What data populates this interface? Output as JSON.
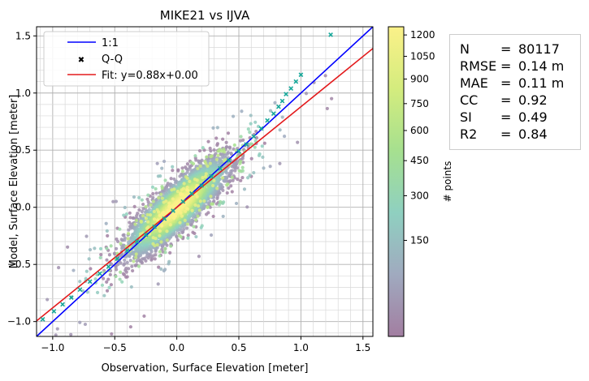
{
  "chart_data": {
    "type": "scatter",
    "title": "MIKE21 vs IJVA",
    "xlabel": "Observation, Surface Elevation [meter]",
    "ylabel": "Model, Surface Elevation [meter]",
    "xlim": [
      -1.13,
      1.58
    ],
    "ylim": [
      -1.13,
      1.58
    ],
    "xticks": [
      -1.0,
      -0.5,
      0.0,
      0.5,
      1.0,
      1.5
    ],
    "xtick_labels": [
      "−1.0",
      "−0.5",
      "0.0",
      "0.5",
      "1.0",
      "1.5"
    ],
    "yticks": [
      -1.0,
      -0.5,
      0.0,
      0.5,
      1.0,
      1.5
    ],
    "ytick_labels": [
      "−1.0",
      "−0.5",
      "0.0",
      "0.5",
      "1.0",
      "1.5"
    ],
    "grid": true,
    "legend_position": "top-left",
    "legend": [
      {
        "label": "1:1",
        "color": "#0000ff",
        "marker": "line"
      },
      {
        "label": "Q-Q",
        "color": "#17a89a",
        "marker": "x"
      },
      {
        "label": "Fit: y=0.88x+0.00",
        "color": "#e31a1c",
        "marker": "line"
      }
    ],
    "series": [
      {
        "name": "1:1",
        "kind": "line",
        "slope": 1.0,
        "intercept": 0.0
      },
      {
        "name": "Fit: y=0.88x+0.00",
        "kind": "line",
        "slope": 0.88,
        "intercept": 0.0
      },
      {
        "name": "Q-Q",
        "kind": "markers",
        "x": [
          -1.08,
          -0.99,
          -0.92,
          -0.85,
          -0.78,
          -0.7,
          -0.62,
          -0.55,
          -0.48,
          -0.4,
          -0.32,
          -0.25,
          -0.18,
          -0.1,
          -0.03,
          0.05,
          0.12,
          0.2,
          0.28,
          0.35,
          0.42,
          0.5,
          0.56,
          0.62,
          0.68,
          0.73,
          0.78,
          0.82,
          0.85,
          0.88,
          0.92,
          0.96,
          1.0,
          1.24
        ],
        "y": [
          -0.98,
          -0.91,
          -0.85,
          -0.79,
          -0.72,
          -0.65,
          -0.58,
          -0.52,
          -0.45,
          -0.38,
          -0.3,
          -0.24,
          -0.17,
          -0.1,
          -0.03,
          0.05,
          0.12,
          0.19,
          0.27,
          0.34,
          0.41,
          0.49,
          0.55,
          0.62,
          0.69,
          0.76,
          0.82,
          0.88,
          0.93,
          0.99,
          1.04,
          1.1,
          1.16,
          1.51
        ]
      }
    ],
    "density": {
      "n": 80117,
      "center": [
        0.0,
        0.0
      ],
      "sd": 0.2,
      "correlation": 0.92
    },
    "colorbar": {
      "label": "# points",
      "ticks": [
        150,
        300,
        450,
        600,
        750,
        900,
        1050,
        1200
      ],
      "range": [
        0,
        1260
      ],
      "colors": [
        "#a27ea1",
        "#a0aabf",
        "#8fd0c0",
        "#a6e08f",
        "#d4ec7e",
        "#fbf189"
      ]
    }
  },
  "stats": [
    {
      "name": "N",
      "eq": "=",
      "value": "80117"
    },
    {
      "name": "RMSE",
      "eq": "=",
      "value": "0.14 m"
    },
    {
      "name": "MAE",
      "eq": "=",
      "value": "0.11 m"
    },
    {
      "name": "CC",
      "eq": "=",
      "value": "0.92"
    },
    {
      "name": "SI",
      "eq": "=",
      "value": "0.49"
    },
    {
      "name": "R2",
      "eq": "=",
      "value": "0.84"
    }
  ]
}
